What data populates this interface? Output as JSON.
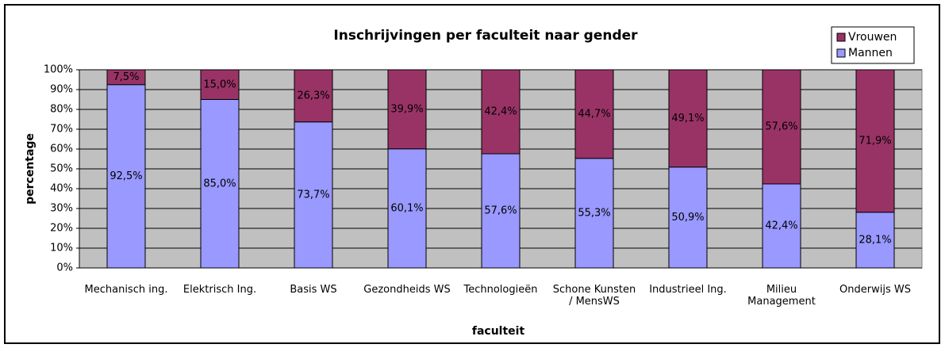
{
  "chart_data": {
    "type": "stacked_bar",
    "title": "Inschrijvingen per faculteit naar gender",
    "x_label": "faculteit",
    "y_label": "percentage",
    "categories": [
      "Mechanisch ing.",
      "Elektrisch Ing.",
      "Basis WS",
      "Gezondheids WS",
      "Technologieën",
      "Schone Kunsten / MensWS",
      "Industrieel Ing.",
      "Milieu Management",
      "Onderwijs WS"
    ],
    "series": [
      {
        "name": "Mannen",
        "color": "#9999ff",
        "values": [
          92.5,
          85.0,
          73.7,
          60.1,
          57.6,
          55.3,
          50.9,
          42.4,
          28.1
        ],
        "value_labels": [
          "92,5%",
          "85,0%",
          "73,7%",
          "60,1%",
          "57,6%",
          "55,3%",
          "50,9%",
          "42,4%",
          "28,1%"
        ]
      },
      {
        "name": "Vrouwen",
        "color": "#993366",
        "values": [
          7.5,
          15.0,
          26.3,
          39.9,
          42.4,
          44.7,
          49.1,
          57.6,
          71.9
        ],
        "value_labels": [
          "7,5%",
          "15,0%",
          "26,3%",
          "39,9%",
          "42,4%",
          "44,7%",
          "49,1%",
          "57,6%",
          "71,9%"
        ]
      }
    ],
    "ylim": [
      0,
      100
    ],
    "yticks": [
      {
        "value": 0,
        "label": "0%"
      },
      {
        "value": 10,
        "label": "10%"
      },
      {
        "value": 20,
        "label": "20%"
      },
      {
        "value": 30,
        "label": "30%"
      },
      {
        "value": 40,
        "label": "40%"
      },
      {
        "value": 50,
        "label": "50%"
      },
      {
        "value": 60,
        "label": "60%"
      },
      {
        "value": 70,
        "label": "70%"
      },
      {
        "value": 80,
        "label": "80%"
      },
      {
        "value": 90,
        "label": "90%"
      },
      {
        "value": 100,
        "label": "100%"
      }
    ],
    "grid": true,
    "legend": "top-right"
  }
}
